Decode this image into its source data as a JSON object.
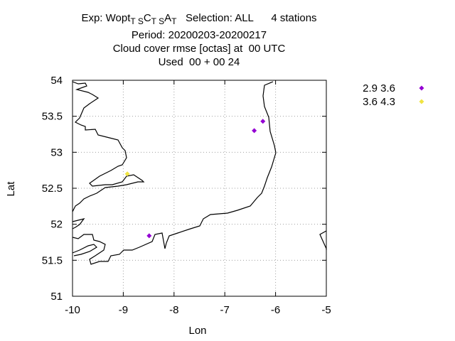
{
  "title": {
    "line1_prefix": "Exp: Wopt",
    "line1_sub1": "T S",
    "line1_mid1": "C",
    "line1_sub2": "T S",
    "line1_mid2": "A",
    "line1_sub3": "T",
    "line1_suffix": "   Selection: ALL      4 stations",
    "line2": "Period: 20200203-20200217",
    "line3": "Cloud cover rmse [octas] at  00 UTC",
    "line4": "Used  00 + 00 24"
  },
  "chart_data": {
    "type": "scatter",
    "title": "Cloud cover rmse [octas] at  00 UTC",
    "xlabel": "Lon",
    "ylabel": "Lat",
    "xlim": [
      -10,
      -5
    ],
    "ylim": [
      51,
      54
    ],
    "xticks": [
      -10,
      -9,
      -8,
      -7,
      -6,
      -5
    ],
    "yticks": [
      51,
      51.5,
      52,
      52.5,
      53,
      53.5,
      54
    ],
    "xtick_labels": [
      "-10",
      "-9",
      "-8",
      "-7",
      "-6",
      "-5"
    ],
    "ytick_labels": [
      "51",
      "51.5",
      "52",
      "52.5",
      "53",
      "53.5",
      "54"
    ],
    "grid": true,
    "legend_position": "outside-top-right",
    "series": [
      {
        "name": "2.9 3.6",
        "color": "#9400d3",
        "marker": "diamond",
        "points": [
          {
            "x": -6.25,
            "y": 53.43
          },
          {
            "x": -6.42,
            "y": 53.3
          },
          {
            "x": -8.49,
            "y": 51.84
          }
        ]
      },
      {
        "name": "3.6 4.3",
        "color": "#f0e442",
        "marker": "diamond",
        "points": [
          {
            "x": -8.92,
            "y": 52.7
          }
        ]
      }
    ]
  }
}
